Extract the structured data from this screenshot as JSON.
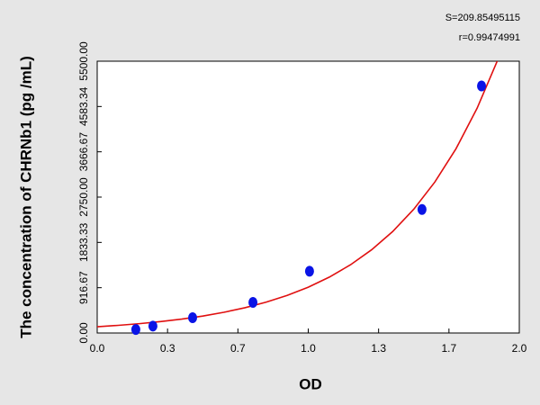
{
  "chart_data": {
    "type": "scatter",
    "annotations": [
      "S=209.85495115",
      "r=0.99474991"
    ],
    "x_label": "OD",
    "y_label": "The concentration of CHRNb1 (pg /mL)",
    "xlim": [
      0,
      2.0
    ],
    "ylim": [
      0,
      5500
    ],
    "xticks": [
      {
        "value": 0,
        "label": "0.0"
      },
      {
        "value": 0.3333,
        "label": "0.3"
      },
      {
        "value": 0.6667,
        "label": "0.7"
      },
      {
        "value": 1,
        "label": "1.0"
      },
      {
        "value": 1.3333,
        "label": "1.3"
      },
      {
        "value": 1.6667,
        "label": "1.7"
      },
      {
        "value": 2,
        "label": "2.0"
      }
    ],
    "yticks": [
      {
        "value": 0,
        "label": "0.00"
      },
      916.67,
      1833.33,
      {
        "value": 2750,
        "label": "2750.00"
      },
      3666.67,
      4583.34,
      {
        "value": 5500,
        "label": "5500.00"
      }
    ],
    "series": [
      {
        "style": "markers",
        "color": "#0a14e6",
        "x": [
          0.183,
          0.264,
          0.452,
          0.738,
          1.006,
          1.539,
          1.821
        ],
        "values": [
          70,
          140,
          310,
          620,
          1250,
          2500,
          5000
        ]
      },
      {
        "style": "line",
        "color": "#e01010",
        "x": [
          0,
          0.1,
          0.2,
          0.3,
          0.4,
          0.5,
          0.6,
          0.7,
          0.8,
          0.9,
          1.0,
          1.1,
          1.2,
          1.3,
          1.4,
          1.5,
          1.6,
          1.7,
          1.8,
          1.9
        ],
        "values": [
          127,
          155,
          189,
          231,
          281,
          343,
          419,
          511,
          623,
          760,
          927,
          1131,
          1380,
          1683,
          2053,
          2505,
          3056,
          3728,
          4548,
          5548
        ]
      }
    ]
  }
}
